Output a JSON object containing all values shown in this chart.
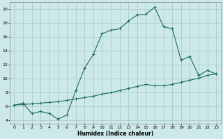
{
  "title": "",
  "xlabel": "Humidex (Indice chaleur)",
  "ylabel": "",
  "bg_color": "#cce8e8",
  "grid_color": "#aacccc",
  "line_color": "#1a6b63",
  "xlim": [
    -0.5,
    23.5
  ],
  "ylim": [
    3.5,
    21.0
  ],
  "yticks": [
    4,
    6,
    8,
    10,
    12,
    14,
    16,
    18,
    20
  ],
  "xticks": [
    0,
    1,
    2,
    3,
    4,
    5,
    6,
    7,
    8,
    9,
    10,
    11,
    12,
    13,
    14,
    15,
    16,
    17,
    18,
    19,
    20,
    21,
    22,
    23
  ],
  "series1_x": [
    0,
    1,
    2,
    3,
    4,
    5,
    6,
    7,
    8,
    9,
    10,
    11,
    12,
    13,
    14,
    15,
    16,
    17,
    18,
    19,
    20,
    21,
    22,
    23
  ],
  "series1_y": [
    6.2,
    6.5,
    5.0,
    5.3,
    5.0,
    4.2,
    4.8,
    8.3,
    11.5,
    13.5,
    16.5,
    17.0,
    17.2,
    18.3,
    19.2,
    19.3,
    20.3,
    17.5,
    17.2,
    12.7,
    13.2,
    10.5,
    11.2,
    10.7
  ],
  "series2_x": [
    0,
    1,
    2,
    3,
    4,
    5,
    6,
    7,
    8,
    9,
    10,
    11,
    12,
    13,
    14,
    15,
    16,
    17,
    18,
    19,
    20,
    21,
    22,
    23
  ],
  "series2_y": [
    6.2,
    6.3,
    6.4,
    6.5,
    6.6,
    6.7,
    6.9,
    7.1,
    7.3,
    7.5,
    7.8,
    8.0,
    8.3,
    8.6,
    8.9,
    9.2,
    9.0,
    9.0,
    9.2,
    9.5,
    9.8,
    10.1,
    10.5,
    10.7
  ],
  "marker_size": 2.5,
  "linewidth": 0.8
}
